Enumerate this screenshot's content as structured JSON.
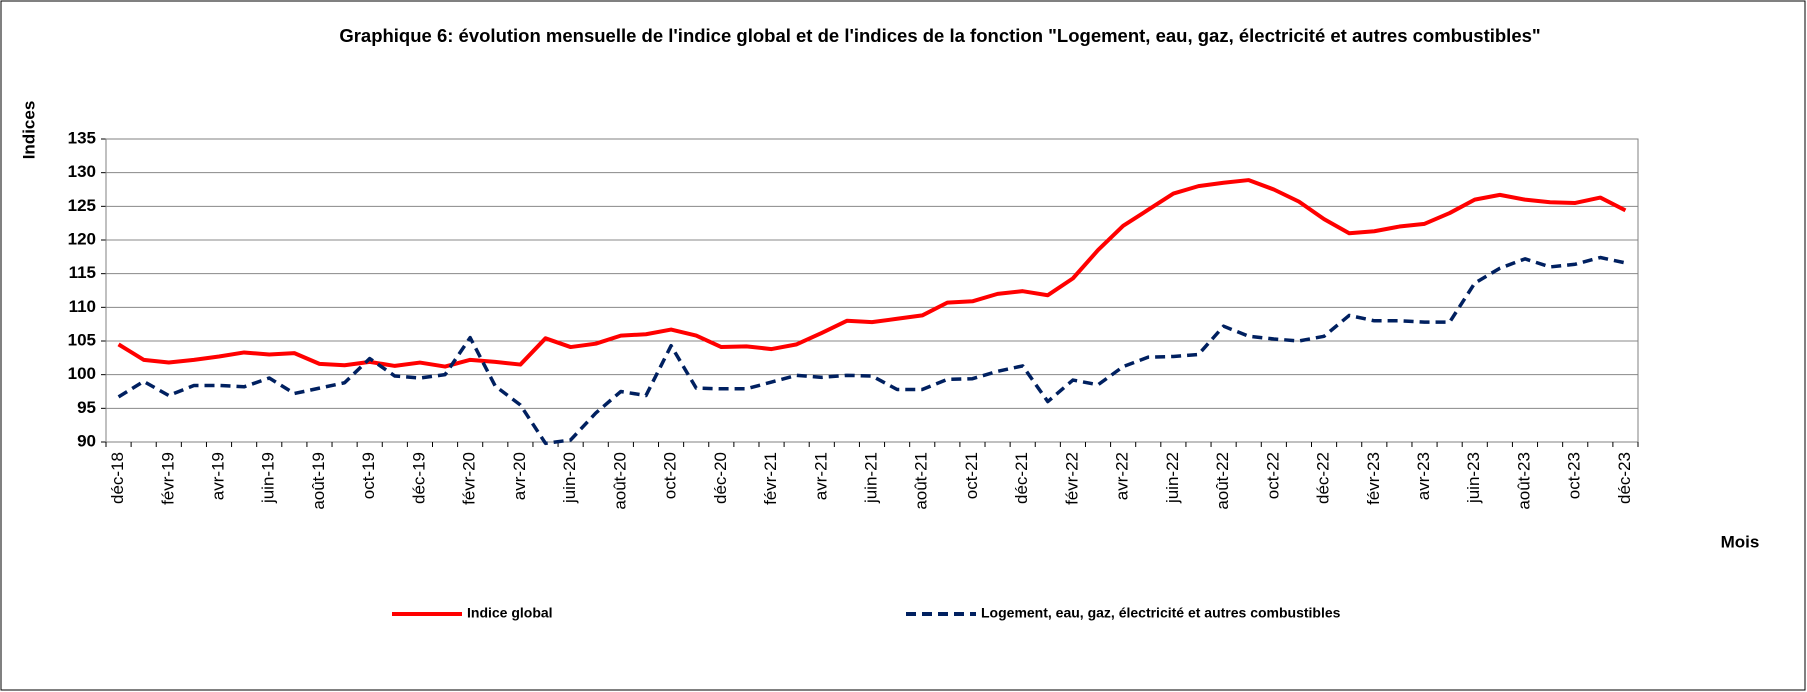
{
  "chart_data": {
    "type": "line",
    "title": "Graphique 6: évolution mensuelle de l'indice global et de l'indices de la fonction \"Logement, eau, gaz, électricité et autres combustibles\"",
    "y_label": "Indices",
    "x_label": "Mois",
    "categories": [
      "déc-18",
      null,
      "févr-19",
      null,
      "avr-19",
      null,
      "juin-19",
      null,
      "août-19",
      null,
      "oct-19",
      null,
      "déc-19",
      null,
      "févr-20",
      null,
      "avr-20",
      null,
      "juin-20",
      null,
      "août-20",
      null,
      "oct-20",
      null,
      "déc-20",
      null,
      "févr-21",
      null,
      "avr-21",
      null,
      "juin-21",
      null,
      "août-21",
      null,
      "oct-21",
      null,
      "déc-21",
      null,
      "févr-22",
      null,
      "avr-22",
      null,
      "juin-22",
      null,
      "août-22",
      null,
      "oct-22",
      null,
      "déc-22",
      null,
      "févr-23",
      null,
      "avr-23",
      null,
      "juin-23",
      null,
      "août-23",
      null,
      "oct-23",
      null,
      "déc-23"
    ],
    "series": [
      {
        "name": "Indice global",
        "color": "#ff0000",
        "dash": false,
        "values": [
          104.5,
          102.2,
          101.8,
          102.2,
          102.7,
          103.3,
          103.0,
          103.2,
          101.6,
          101.4,
          101.9,
          101.3,
          101.8,
          101.2,
          102.2,
          101.9,
          101.5,
          105.4,
          104.1,
          104.6,
          105.8,
          106.0,
          106.7,
          105.8,
          104.1,
          104.2,
          103.8,
          104.5,
          106.2,
          108.0,
          107.8,
          108.3,
          108.8,
          110.7,
          110.9,
          112.0,
          112.4,
          111.8,
          114.3,
          118.5,
          122.1,
          124.5,
          126.9,
          128.0,
          128.5,
          128.9,
          127.5,
          125.7,
          123.1,
          121.0,
          121.3,
          122.0,
          122.4,
          124.0,
          126.0,
          126.7,
          126.0,
          125.6,
          125.5,
          126.3,
          124.4
        ]
      },
      {
        "name": "Logement, eau, gaz, électricité et autres combustibles",
        "color": "#002060",
        "dash": true,
        "values": [
          96.7,
          99.0,
          96.9,
          98.4,
          98.4,
          98.2,
          99.5,
          97.2,
          98.0,
          98.8,
          102.4,
          99.8,
          99.5,
          100.0,
          105.5,
          98.3,
          95.5,
          89.8,
          90.3,
          94.3,
          97.5,
          96.9,
          104.3,
          98.0,
          97.9,
          97.9,
          98.9,
          99.9,
          99.6,
          99.9,
          99.8,
          97.8,
          97.8,
          99.3,
          99.4,
          100.5,
          101.3,
          96.0,
          99.2,
          98.5,
          101.2,
          102.6,
          102.7,
          103.0,
          107.2,
          105.7,
          105.3,
          105.0,
          105.7,
          108.8,
          108.0,
          108.0,
          107.8,
          107.8,
          113.6,
          115.8,
          117.2,
          116.0,
          116.4,
          117.4,
          116.6
        ]
      }
    ],
    "ylim": [
      90,
      135
    ],
    "yticks": [
      90,
      95,
      100,
      105,
      110,
      115,
      120,
      125,
      130,
      135
    ],
    "grid": true,
    "legend": "bottom"
  }
}
